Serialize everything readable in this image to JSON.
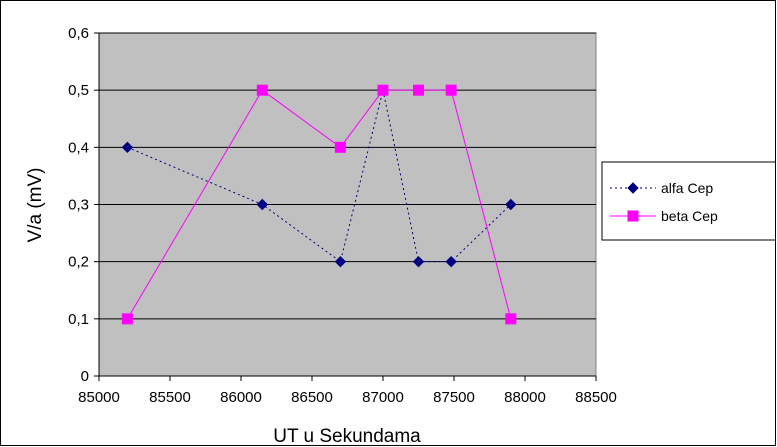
{
  "chart_data": {
    "type": "line",
    "title": "",
    "xlabel": "UT u Sekundama",
    "ylabel": "V/a  (mV)",
    "xlim": [
      85000,
      88500
    ],
    "ylim": [
      0,
      0.6
    ],
    "x_ticks": [
      "85000",
      "85500",
      "86000",
      "86500",
      "87000",
      "87500",
      "88000",
      "88500"
    ],
    "y_ticks": [
      "0",
      "0,1",
      "0,2",
      "0,3",
      "0,4",
      "0,5",
      "0,6"
    ],
    "grid": true,
    "plot_background": "#c0c0c0",
    "legend_position": "right",
    "series": [
      {
        "name": "alfa Cep",
        "color": "#000080",
        "line_style": "dotted",
        "marker": "diamond",
        "points": [
          [
            85200,
            0.4
          ],
          [
            86150,
            0.3
          ],
          [
            86700,
            0.2
          ],
          [
            87000,
            0.5
          ],
          [
            87250,
            0.2
          ],
          [
            87480,
            0.2
          ],
          [
            87900,
            0.3
          ]
        ]
      },
      {
        "name": "beta Cep",
        "color": "#ff00ff",
        "line_style": "solid",
        "marker": "square",
        "points": [
          [
            85200,
            0.1
          ],
          [
            86150,
            0.5
          ],
          [
            86700,
            0.4
          ],
          [
            87000,
            0.5
          ],
          [
            87250,
            0.5
          ],
          [
            87480,
            0.5
          ],
          [
            87900,
            0.1
          ]
        ]
      }
    ]
  }
}
